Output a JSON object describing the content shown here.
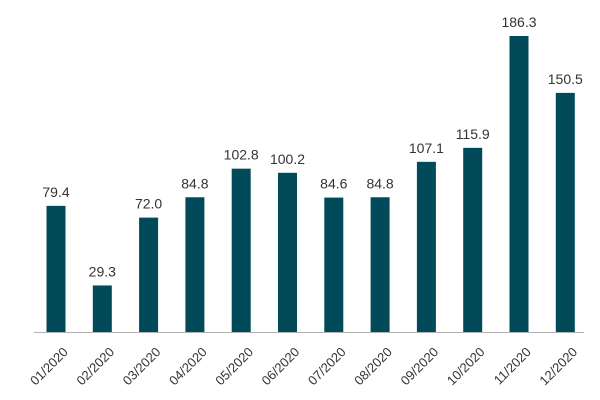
{
  "chart_data": {
    "type": "bar",
    "categories": [
      "01/2020",
      "02/2020",
      "03/2020",
      "04/2020",
      "05/2020",
      "06/2020",
      "07/2020",
      "08/2020",
      "09/2020",
      "10/2020",
      "11/2020",
      "12/2020"
    ],
    "values": [
      79.4,
      29.3,
      72.0,
      84.8,
      102.8,
      100.2,
      84.6,
      84.8,
      107.1,
      115.9,
      186.3,
      150.5
    ],
    "value_labels": [
      "79.4",
      "29.3",
      "72.0",
      "84.8",
      "102.8",
      "100.2",
      "84.6",
      "84.8",
      "107.1",
      "115.9",
      "186.3",
      "150.5"
    ],
    "title": "",
    "xlabel": "",
    "ylabel": "",
    "ylim": [
      0,
      186.3
    ],
    "grid": false,
    "legend": "none",
    "colors": {
      "bar": "#004a59",
      "axis": "#b0b0b0",
      "text": "#333333"
    }
  }
}
